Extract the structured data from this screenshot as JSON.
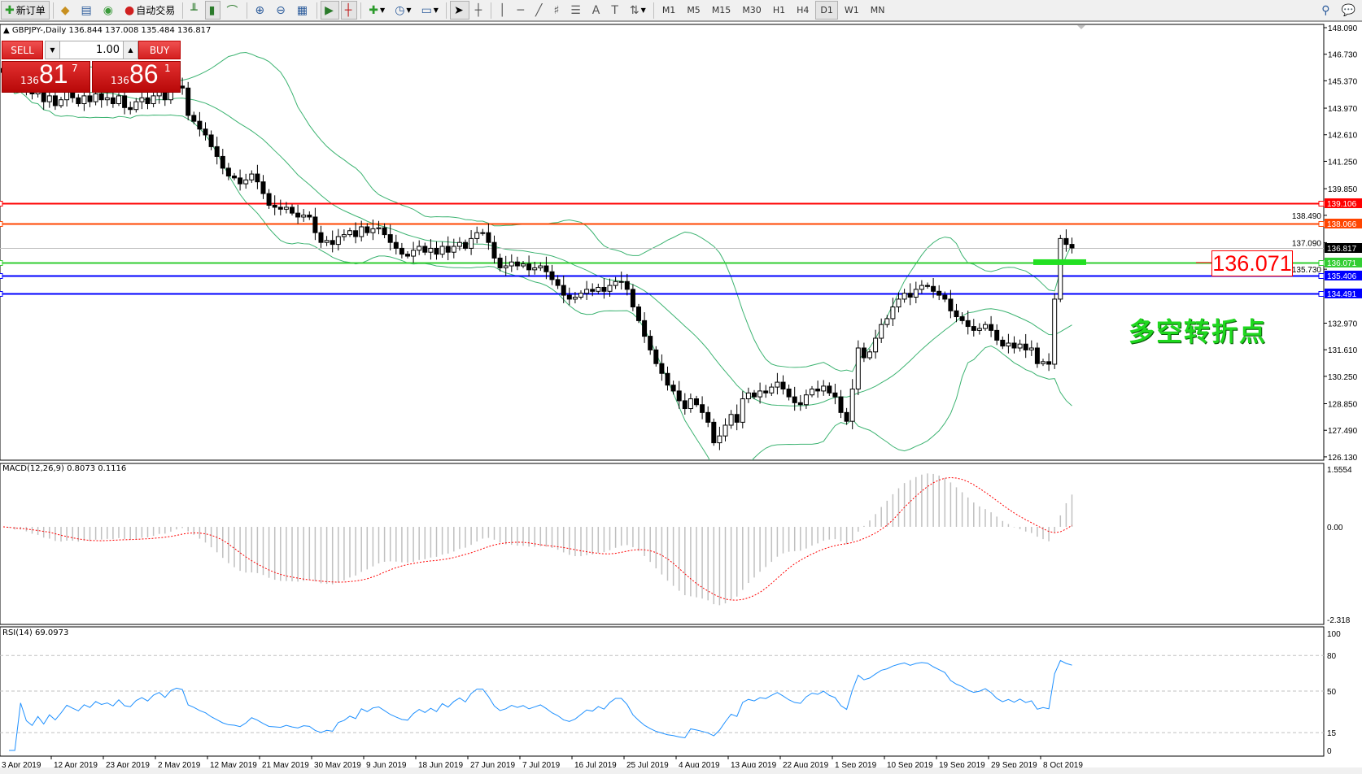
{
  "toolbar": {
    "new_order": "新订单",
    "auto_trading": "自动交易",
    "timeframes": [
      "M1",
      "M5",
      "M15",
      "M30",
      "H1",
      "H4",
      "D1",
      "W1",
      "MN"
    ],
    "active_timeframe": "D1"
  },
  "symbol_info": "GBPJPY-,Daily  136.844 137.008 135.484 136.817",
  "trade_panel": {
    "sell_label": "SELL",
    "buy_label": "BUY",
    "volume": "1.00",
    "sell_price": {
      "prefix": "136",
      "big": "81",
      "sup": "7"
    },
    "buy_price": {
      "prefix": "136",
      "big": "86",
      "sup": "1"
    }
  },
  "price_axis": [
    "148.090",
    "146.730",
    "145.370",
    "143.970",
    "142.610",
    "141.250",
    "139.850",
    "138.490",
    "137.090",
    "135.730",
    "132.970",
    "131.610",
    "130.250",
    "128.850",
    "127.490",
    "126.130"
  ],
  "levels": [
    {
      "value": "139.106",
      "color": "#ff0000"
    },
    {
      "value": "138.066",
      "color": "#ff4500"
    },
    {
      "value": "136.817",
      "color": "#000000",
      "line": "#c0c0c0"
    },
    {
      "value": "136.071",
      "color": "#32cd32"
    },
    {
      "value": "135.406",
      "color": "#0000ff"
    },
    {
      "value": "134.491",
      "color": "#0000ff"
    }
  ],
  "annotation": {
    "price_box": "136.071",
    "note": "多空转折点"
  },
  "macd": {
    "label": "MACD(12,26,9) 0.8073 0.1116",
    "axis": [
      "1.5554",
      "0.00",
      "-2.318"
    ]
  },
  "rsi": {
    "label": "RSI(14) 69.0973",
    "axis": [
      "100",
      "80",
      "50",
      "15",
      "0"
    ],
    "levels": [
      80,
      50,
      15
    ]
  },
  "time_axis": [
    "3 Apr 2019",
    "12 Apr 2019",
    "23 Apr 2019",
    "2 May 2019",
    "12 May 2019",
    "21 May 2019",
    "30 May 2019",
    "9 Jun 2019",
    "18 Jun 2019",
    "27 Jun 2019",
    "7 Jul 2019",
    "16 Jul 2019",
    "25 Jul 2019",
    "4 Aug 2019",
    "13 Aug 2019",
    "22 Aug 2019",
    "1 Sep 2019",
    "10 Sep 2019",
    "19 Sep 2019",
    "29 Sep 2019",
    "8 Oct 2019"
  ],
  "chart_data": {
    "type": "candlestick",
    "symbol": "GBPJPY-",
    "period": "Daily",
    "ylim": [
      126.13,
      148.09
    ],
    "colors": {
      "bands": "#3cb371",
      "macd_hist": "#c0c0c0",
      "macd_signal": "#ff0000",
      "rsi": "#1e90ff"
    },
    "closes": [
      145.8,
      145.5,
      145.2,
      145.6,
      145.0,
      144.7,
      144.9,
      144.3,
      144.6,
      144.1,
      144.4,
      144.8,
      144.5,
      144.2,
      144.6,
      144.3,
      144.7,
      144.4,
      144.5,
      144.2,
      144.6,
      144.0,
      143.9,
      144.3,
      144.5,
      144.2,
      144.6,
      144.8,
      144.4,
      144.9,
      145.1,
      145.0,
      143.6,
      143.3,
      142.9,
      142.6,
      142.0,
      141.5,
      140.9,
      140.5,
      140.4,
      140.1,
      140.3,
      140.6,
      140.2,
      139.6,
      139.0,
      138.9,
      138.8,
      138.9,
      138.6,
      138.4,
      138.5,
      138.4,
      137.6,
      137.1,
      137.2,
      137.0,
      137.4,
      137.5,
      137.7,
      137.4,
      137.9,
      137.6,
      137.8,
      137.85,
      137.5,
      137.1,
      136.8,
      136.5,
      136.4,
      136.7,
      136.9,
      136.6,
      136.8,
      136.5,
      136.9,
      136.6,
      136.9,
      137.1,
      136.8,
      137.3,
      137.6,
      137.6,
      137.1,
      136.3,
      135.8,
      135.9,
      136.1,
      135.9,
      136.0,
      135.7,
      135.8,
      135.9,
      135.6,
      135.2,
      134.9,
      134.4,
      134.2,
      134.3,
      134.5,
      134.7,
      134.6,
      134.8,
      134.6,
      134.9,
      135.1,
      135.1,
      134.7,
      133.8,
      133.1,
      132.3,
      131.6,
      130.9,
      130.4,
      129.8,
      129.5,
      129.0,
      128.6,
      129.1,
      128.8,
      128.4,
      127.9,
      126.85,
      127.2,
      127.75,
      128.3,
      127.9,
      129.1,
      129.4,
      129.2,
      129.5,
      129.4,
      129.7,
      129.95,
      129.6,
      129.2,
      128.9,
      128.8,
      129.3,
      129.6,
      129.5,
      129.75,
      129.4,
      129.2,
      128.4,
      127.95,
      129.6,
      131.7,
      131.2,
      131.5,
      132.2,
      132.9,
      133.2,
      133.8,
      134.2,
      134.5,
      134.3,
      134.7,
      134.9,
      134.85,
      134.6,
      134.4,
      134.2,
      133.6,
      133.3,
      133.1,
      132.8,
      132.6,
      132.7,
      132.9,
      132.6,
      132.1,
      131.8,
      131.95,
      131.7,
      131.9,
      131.6,
      131.7,
      130.9,
      131.0,
      130.87,
      134.2,
      137.3,
      137.0,
      136.817
    ]
  }
}
